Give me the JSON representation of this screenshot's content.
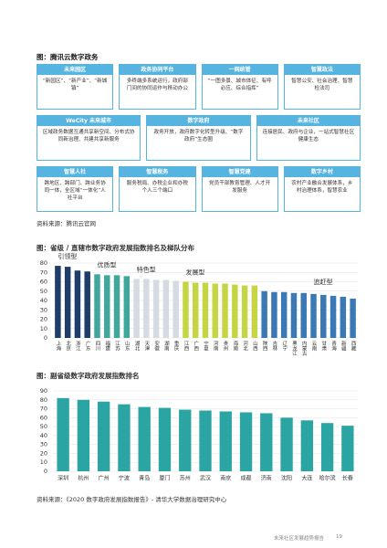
{
  "figure1": {
    "title": "图：腾讯云数字政务",
    "rows": [
      [
        {
          "title": "未来园区",
          "text": "“新园区”、“新产业”、“新城镇”"
        },
        {
          "title": "政务协同平台",
          "text": "多终端多系统运行，政府部门间的协同运作与移动办公"
        },
        {
          "title": "一网统管",
          "text": "“一图多景、城市体征、有呼必应、综合指挥”"
        },
        {
          "title": "智慧政法",
          "text": "智慧公安、社会治理、智慧检法司"
        }
      ],
      [
        {
          "title": "WeCity 未来城市",
          "text": "区域政务数据互通共享新空间、分布式协同新治理、共建共享新服务"
        },
        {
          "title": "数字政府",
          "text": "政务开放，政府数字化转型升级、“数字政府”生态圈"
        },
        {
          "title": "未来社区",
          "text": "连接居民、政府与企业，一站式智慧社区健康生态"
        }
      ],
      [
        {
          "title": "智慧人社",
          "text": "跨地区、跨部门、跨业务协同一体，全区域“一体化”人社平台"
        },
        {
          "title": "智慧税务",
          "text": "服务税局、办税企业和办税个人三个端口"
        },
        {
          "title": "智慧党建",
          "text": "党员干部教育管理、人才开发服务"
        },
        {
          "title": "数字乡村",
          "text": "农村产业融合发展体系，乡村治理体系，智慧农业"
        }
      ]
    ],
    "source": "资料来源：腾讯云官网"
  },
  "chart_data": [
    {
      "type": "bar",
      "title": "图：省级 / 直辖市数字政府发展指数排名及梯队分布",
      "categories": [
        "上海",
        "北京",
        "浙江",
        "广东",
        "四川",
        "福建",
        "江苏",
        "山东",
        "湖北",
        "天津",
        "安徽",
        "湖南",
        "重庆",
        "江西",
        "广西",
        "宁夏",
        "河南",
        "贵州",
        "海南",
        "河北",
        "山西",
        "陕西",
        "吉林",
        "辽宁",
        "黑龙江",
        "内蒙古",
        "云南",
        "甘肃",
        "青海",
        "新疆",
        "西藏"
      ],
      "series": [
        {
          "name": "引领型",
          "color": "#1f3d6b",
          "values": [
            77,
            76,
            72,
            71,
            null,
            null,
            null,
            null,
            null,
            null,
            null,
            null,
            null,
            null,
            null,
            null,
            null,
            null,
            null,
            null,
            null,
            null,
            null,
            null,
            null,
            null,
            null,
            null,
            null,
            null,
            null
          ]
        },
        {
          "name": "优质型",
          "color": "#3fa79c",
          "values": [
            null,
            null,
            null,
            null,
            68,
            67,
            67,
            66,
            null,
            null,
            null,
            null,
            null,
            null,
            null,
            null,
            null,
            null,
            null,
            null,
            null,
            null,
            null,
            null,
            null,
            null,
            null,
            null,
            null,
            null,
            null
          ]
        },
        {
          "name": "特色型",
          "color": "#d6dbe1",
          "values": [
            null,
            null,
            null,
            null,
            null,
            null,
            null,
            null,
            63,
            63,
            62,
            62,
            61,
            null,
            null,
            null,
            null,
            null,
            null,
            null,
            null,
            null,
            null,
            null,
            null,
            null,
            null,
            null,
            null,
            null,
            null
          ]
        },
        {
          "name": "发展型",
          "color": "#c5d544",
          "values": [
            null,
            null,
            null,
            null,
            null,
            null,
            null,
            null,
            null,
            null,
            null,
            null,
            null,
            60,
            59,
            59,
            58,
            58,
            57,
            56,
            56,
            null,
            null,
            null,
            null,
            null,
            null,
            null,
            null,
            null,
            null
          ]
        },
        {
          "name": "追赶型",
          "color": "#3b79b6",
          "values": [
            null,
            null,
            null,
            null,
            null,
            null,
            null,
            null,
            null,
            null,
            null,
            null,
            null,
            null,
            null,
            null,
            null,
            null,
            null,
            null,
            null,
            50,
            49,
            49,
            48,
            48,
            47,
            46,
            45,
            44,
            42
          ]
        }
      ],
      "ylim": [
        0,
        80
      ],
      "yticks": [
        0,
        10,
        20,
        30,
        40,
        50,
        60,
        70,
        80
      ]
    },
    {
      "type": "bar",
      "title": "图：副省级数字政府发展指数排名",
      "categories": [
        "深圳",
        "杭州",
        "广州",
        "宁波",
        "青岛",
        "厦门",
        "苏州",
        "武汉",
        "南京",
        "成都",
        "济南",
        "沈阳",
        "大连",
        "哈尔滨",
        "长春"
      ],
      "values": [
        82,
        80,
        78,
        75,
        72,
        71,
        69,
        68,
        67,
        66,
        65,
        60,
        57,
        54,
        51
      ],
      "color": "#2ba5a3",
      "ylim": [
        0,
        90
      ],
      "yticks": [
        0,
        10,
        20,
        30,
        40,
        50,
        60,
        70,
        80,
        90
      ]
    }
  ],
  "source2": "资料来源：《2020 数字政府发展指数报告》- 清华大学数据治理研究中心",
  "footer": {
    "text": "未来社区发展趋势报告",
    "page": "19"
  }
}
